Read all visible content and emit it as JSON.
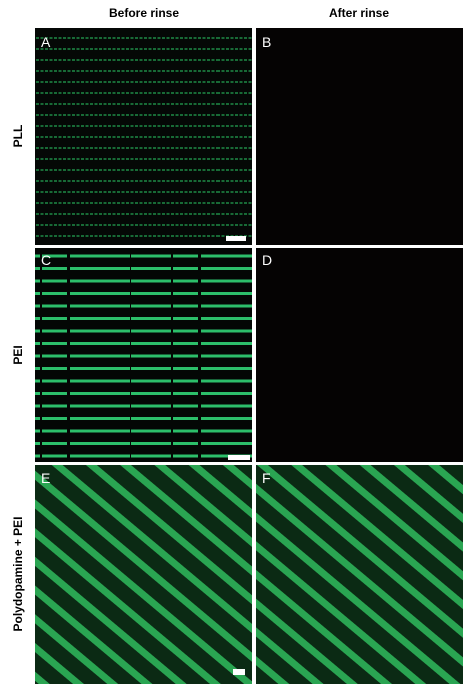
{
  "column_headers": [
    "Before rinse",
    "After rinse"
  ],
  "row_labels": [
    "PLL",
    "PEI",
    "Polydopamine + PEI"
  ],
  "panels": [
    {
      "label": "A"
    },
    {
      "label": "B"
    },
    {
      "label": "C"
    },
    {
      "label": "D"
    },
    {
      "label": "E"
    },
    {
      "label": "F"
    }
  ]
}
